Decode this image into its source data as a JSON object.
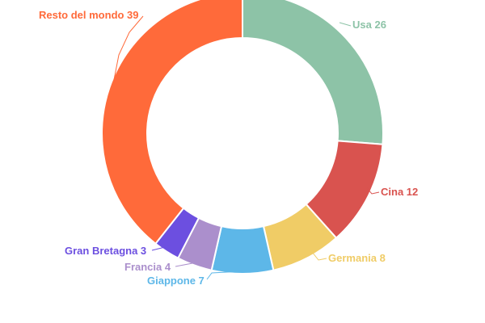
{
  "chart_data": {
    "type": "pie",
    "variant": "donut",
    "title": "",
    "slices": [
      {
        "name": "Usa",
        "value": 26,
        "label": "Usa 26",
        "color": "#8dc3a7"
      },
      {
        "name": "Cina",
        "value": 12,
        "label": "Cina 12",
        "color": "#d9534f"
      },
      {
        "name": "Germania",
        "value": 8,
        "label": "Germania 8",
        "color": "#f0cc66"
      },
      {
        "name": "Giappone",
        "value": 7,
        "label": "Giappone 7",
        "color": "#5db7e8"
      },
      {
        "name": "Francia",
        "value": 4,
        "label": "Francia 4",
        "color": "#ab8fcc"
      },
      {
        "name": "Gran Bretagna",
        "value": 3,
        "label": "Gran Bretagna 3",
        "color": "#6c4fe0"
      },
      {
        "name": "Resto del mondo",
        "value": 39,
        "label": "Resto del mondo 39",
        "color": "#ff6a3a"
      }
    ],
    "start_angle_deg": 0,
    "direction": "clockwise",
    "legend": "none"
  }
}
